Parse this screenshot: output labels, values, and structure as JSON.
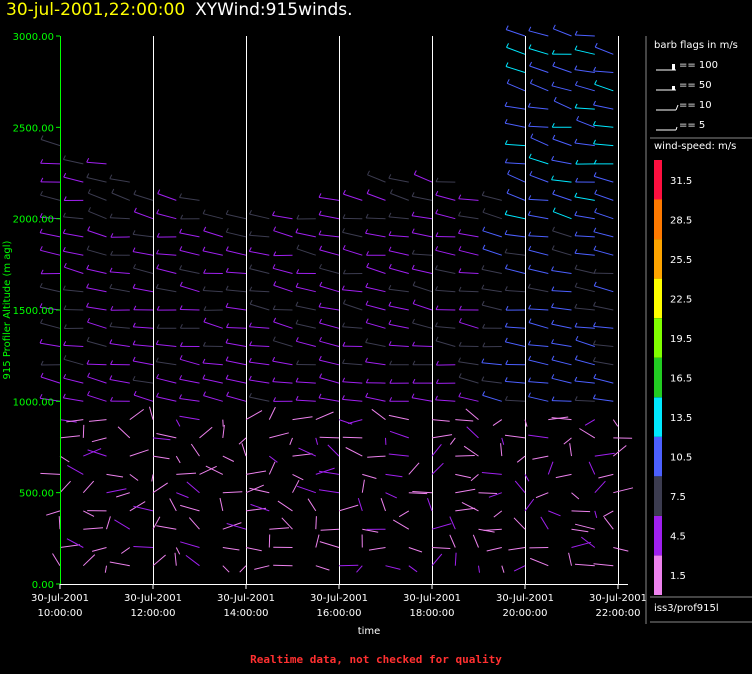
{
  "header": {
    "date": "30-jul-2001,22:00:00",
    "name": "XYWind:915winds."
  },
  "footer": "Realtime data, not checked for quality",
  "legend": {
    "barb_title": "barb flags in m/s",
    "barbs": [
      {
        "label": "== 100",
        "kind": "flag"
      },
      {
        "label": "== 50",
        "kind": "flag-small"
      },
      {
        "label": "== 10",
        "kind": "full"
      },
      {
        "label": "== 5",
        "kind": "half"
      }
    ],
    "speed_title": "wind-speed: m/s",
    "source": "iss3/prof915l"
  },
  "colors": {
    "axis_y": "#00ff00",
    "axis_x": "#ffffff",
    "grid": "#ffffff",
    "title_date": "#ffff00",
    "footer": "#ff3030"
  },
  "chart_data": {
    "type": "wind-barb",
    "title": "30-jul-2001,22:00:00  XYWind:915winds.",
    "xlabel": "time",
    "ylabel": "915 Profiler Altitude (m agl)",
    "ylim": [
      0,
      3000
    ],
    "y_ticks": [
      "0.00",
      "500.00",
      "1000.00",
      "1500.00",
      "2000.00",
      "2500.00",
      "3000.00"
    ],
    "x_ticks": [
      {
        "date": "30-Jul-2001",
        "time": "10:00:00",
        "hour": 10
      },
      {
        "date": "30-Jul-2001",
        "time": "12:00:00",
        "hour": 12
      },
      {
        "date": "30-Jul-2001",
        "time": "14:00:00",
        "hour": 14
      },
      {
        "date": "30-Jul-2001",
        "time": "16:00:00",
        "hour": 16
      },
      {
        "date": "30-Jul-2001",
        "time": "18:00:00",
        "hour": 18
      },
      {
        "date": "30-Jul-2001",
        "time": "20:00:00",
        "hour": 20
      },
      {
        "date": "30-Jul-2001",
        "time": "22:00:00",
        "hour": 22
      }
    ],
    "xlim_hours": [
      10,
      22
    ],
    "colorbar": [
      {
        "label": "1.5",
        "color": "#ee82ee"
      },
      {
        "label": "4.5",
        "color": "#a020f0"
      },
      {
        "label": "7.5",
        "color": "#3c3c50"
      },
      {
        "label": "10.5",
        "color": "#4c60ff"
      },
      {
        "label": "13.5",
        "color": "#00e8ff"
      },
      {
        "label": "16.5",
        "color": "#22cc22"
      },
      {
        "label": "19.5",
        "color": "#80ff00"
      },
      {
        "label": "22.5",
        "color": "#ffff00"
      },
      {
        "label": "25.5",
        "color": "#ffa500"
      },
      {
        "label": "28.5",
        "color": "#ff7a00"
      },
      {
        "label": "31.5",
        "color": "#ff1040"
      }
    ],
    "profiles": [
      {
        "hour": 10.0,
        "top": 2400
      },
      {
        "hour": 10.5,
        "top": 2300
      },
      {
        "hour": 11.0,
        "top": 2300
      },
      {
        "hour": 11.5,
        "top": 2200
      },
      {
        "hour": 12.0,
        "top": 2100
      },
      {
        "hour": 12.5,
        "top": 2100
      },
      {
        "hour": 13.0,
        "top": 2100
      },
      {
        "hour": 13.5,
        "top": 2000
      },
      {
        "hour": 14.0,
        "top": 2000
      },
      {
        "hour": 14.5,
        "top": 2000
      },
      {
        "hour": 15.0,
        "top": 2000
      },
      {
        "hour": 15.5,
        "top": 2000
      },
      {
        "hour": 16.0,
        "top": 2100
      },
      {
        "hour": 16.5,
        "top": 2100
      },
      {
        "hour": 17.0,
        "top": 2200
      },
      {
        "hour": 17.5,
        "top": 2200
      },
      {
        "hour": 18.0,
        "top": 2200
      },
      {
        "hour": 18.5,
        "top": 2200
      },
      {
        "hour": 19.0,
        "top": 2100
      },
      {
        "hour": 19.5,
        "top": 2100
      },
      {
        "hour": 20.0,
        "top": 3000
      },
      {
        "hour": 20.5,
        "top": 3000
      },
      {
        "hour": 21.0,
        "top": 3000
      },
      {
        "hour": 21.5,
        "top": 3000
      },
      {
        "hour": 21.9,
        "top": 2900
      }
    ]
  }
}
